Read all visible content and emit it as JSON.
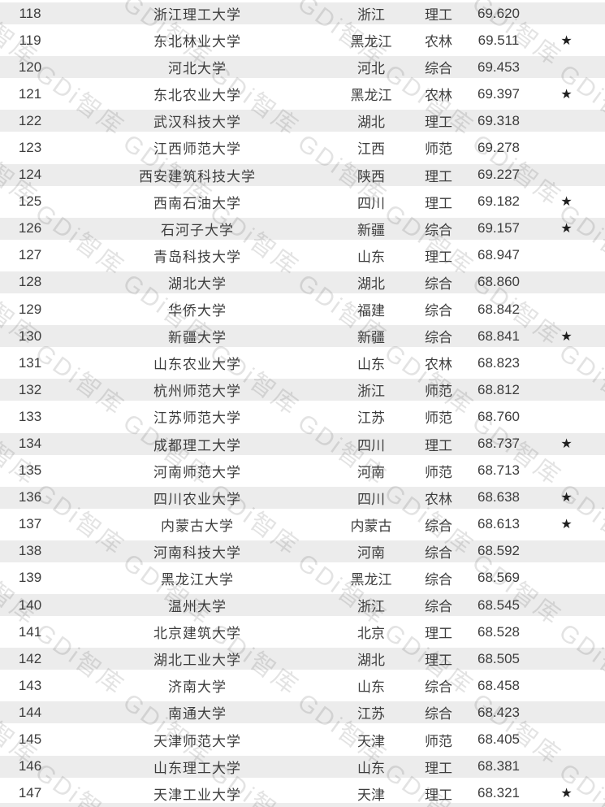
{
  "watermark": {
    "text": "GDi智库"
  },
  "colors": {
    "row_alt_bg": "#ececec",
    "text": "#3d3d3d",
    "star": "#1f1f1f",
    "watermark": "#e2e2e2"
  },
  "symbols": {
    "star": "★"
  },
  "rows": [
    {
      "rank": "118",
      "university": "浙江理工大学",
      "province": "浙江",
      "category": "理工",
      "score": "69.620",
      "star": ""
    },
    {
      "rank": "119",
      "university": "东北林业大学",
      "province": "黑龙江",
      "category": "农林",
      "score": "69.511",
      "star": "★"
    },
    {
      "rank": "120",
      "university": "河北大学",
      "province": "河北",
      "category": "综合",
      "score": "69.453",
      "star": ""
    },
    {
      "rank": "121",
      "university": "东北农业大学",
      "province": "黑龙江",
      "category": "农林",
      "score": "69.397",
      "star": "★"
    },
    {
      "rank": "122",
      "university": "武汉科技大学",
      "province": "湖北",
      "category": "理工",
      "score": "69.318",
      "star": ""
    },
    {
      "rank": "123",
      "university": "江西师范大学",
      "province": "江西",
      "category": "师范",
      "score": "69.278",
      "star": ""
    },
    {
      "rank": "124",
      "university": "西安建筑科技大学",
      "province": "陕西",
      "category": "理工",
      "score": "69.227",
      "star": ""
    },
    {
      "rank": "125",
      "university": "西南石油大学",
      "province": "四川",
      "category": "理工",
      "score": "69.182",
      "star": "★"
    },
    {
      "rank": "126",
      "university": "石河子大学",
      "province": "新疆",
      "category": "综合",
      "score": "69.157",
      "star": "★"
    },
    {
      "rank": "127",
      "university": "青岛科技大学",
      "province": "山东",
      "category": "理工",
      "score": "68.947",
      "star": ""
    },
    {
      "rank": "128",
      "university": "湖北大学",
      "province": "湖北",
      "category": "综合",
      "score": "68.860",
      "star": ""
    },
    {
      "rank": "129",
      "university": "华侨大学",
      "province": "福建",
      "category": "综合",
      "score": "68.842",
      "star": ""
    },
    {
      "rank": "130",
      "university": "新疆大学",
      "province": "新疆",
      "category": "综合",
      "score": "68.841",
      "star": "★"
    },
    {
      "rank": "131",
      "university": "山东农业大学",
      "province": "山东",
      "category": "农林",
      "score": "68.823",
      "star": ""
    },
    {
      "rank": "132",
      "university": "杭州师范大学",
      "province": "浙江",
      "category": "师范",
      "score": "68.812",
      "star": ""
    },
    {
      "rank": "133",
      "university": "江苏师范大学",
      "province": "江苏",
      "category": "师范",
      "score": "68.760",
      "star": ""
    },
    {
      "rank": "134",
      "university": "成都理工大学",
      "province": "四川",
      "category": "理工",
      "score": "68.737",
      "star": "★"
    },
    {
      "rank": "135",
      "university": "河南师范大学",
      "province": "河南",
      "category": "师范",
      "score": "68.713",
      "star": ""
    },
    {
      "rank": "136",
      "university": "四川农业大学",
      "province": "四川",
      "category": "农林",
      "score": "68.638",
      "star": "★"
    },
    {
      "rank": "137",
      "university": "内蒙古大学",
      "province": "内蒙古",
      "category": "综合",
      "score": "68.613",
      "star": "★"
    },
    {
      "rank": "138",
      "university": "河南科技大学",
      "province": "河南",
      "category": "综合",
      "score": "68.592",
      "star": ""
    },
    {
      "rank": "139",
      "university": "黑龙江大学",
      "province": "黑龙江",
      "category": "综合",
      "score": "68.569",
      "star": ""
    },
    {
      "rank": "140",
      "university": "温州大学",
      "province": "浙江",
      "category": "综合",
      "score": "68.545",
      "star": ""
    },
    {
      "rank": "141",
      "university": "北京建筑大学",
      "province": "北京",
      "category": "理工",
      "score": "68.528",
      "star": ""
    },
    {
      "rank": "142",
      "university": "湖北工业大学",
      "province": "湖北",
      "category": "理工",
      "score": "68.505",
      "star": ""
    },
    {
      "rank": "143",
      "university": "济南大学",
      "province": "山东",
      "category": "综合",
      "score": "68.458",
      "star": ""
    },
    {
      "rank": "144",
      "university": "南通大学",
      "province": "江苏",
      "category": "综合",
      "score": "68.423",
      "star": ""
    },
    {
      "rank": "145",
      "university": "天津师范大学",
      "province": "天津",
      "category": "师范",
      "score": "68.405",
      "star": ""
    },
    {
      "rank": "146",
      "university": "山东理工大学",
      "province": "山东",
      "category": "理工",
      "score": "68.381",
      "star": ""
    },
    {
      "rank": "147",
      "university": "天津工业大学",
      "province": "天津",
      "category": "理工",
      "score": "68.321",
      "star": "★"
    }
  ]
}
